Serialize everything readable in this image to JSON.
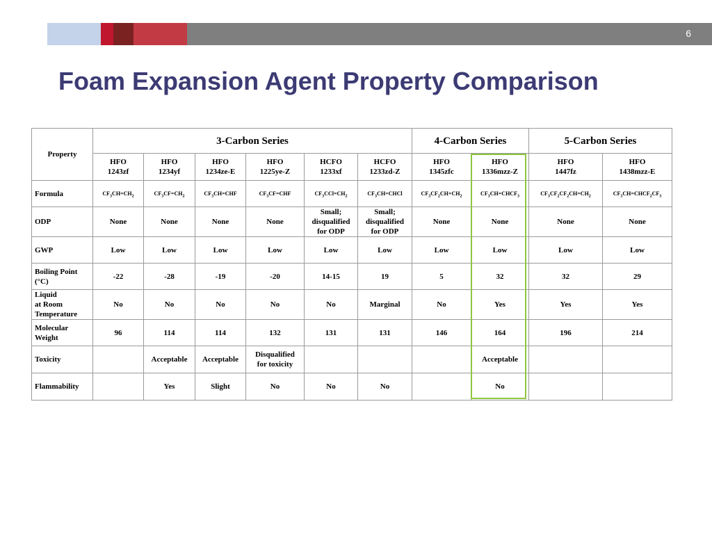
{
  "page_number": "6",
  "title": "Foam Expansion Agent Property Comparison",
  "table": {
    "property_header": "Property",
    "series": [
      {
        "label": "3-Carbon Series"
      },
      {
        "label": "4-Carbon Series"
      },
      {
        "label": "5-Carbon Series"
      }
    ],
    "compounds": [
      {
        "line1": "HFO",
        "line2": "1243zf"
      },
      {
        "line1": "HFO",
        "line2": "1234yf"
      },
      {
        "line1": "HFO",
        "line2": "1234ze-E"
      },
      {
        "line1": "HFO",
        "line2": "1225ye-Z"
      },
      {
        "line1": "HCFO",
        "line2": "1233xf"
      },
      {
        "line1": "HCFO",
        "line2": "1233zd-Z"
      },
      {
        "line1": "HFO",
        "line2": "1345zfc"
      },
      {
        "line1": "HFO",
        "line2": "1336mzz-Z"
      },
      {
        "line1": "HFO",
        "line2": "1447fz"
      },
      {
        "line1": "HFO",
        "line2": "1438mzz-E"
      }
    ],
    "formula_label": "Formula",
    "formulas": [
      "CF₃CH=CH₂",
      "CF₃CF=CH₂",
      "CF₃CH=CHF",
      "CF₃CF=CHF",
      "CF₃CCl=CH₂",
      "CF₃CH=CHCl",
      "CF₃CF₂CH=CH₂",
      "CF₃CH=CHCF₃",
      "CF₃CF₂CF₂CH=CH₂",
      "CF₃CH=CHCF₂CF₃"
    ],
    "odp_label": "ODP",
    "odp": [
      "None",
      "None",
      "None",
      "None",
      "Small;\ndisqualified\nfor ODP",
      "Small;\ndisqualified\nfor ODP",
      "None",
      "None",
      "None",
      "None"
    ],
    "gwp_label": "GWP",
    "gwp": [
      "Low",
      "Low",
      "Low",
      "Low",
      "Low",
      "Low",
      "Low",
      "Low",
      "Low",
      "Low"
    ],
    "bp_label": "Boiling Point\n(°C)",
    "bp": [
      "-22",
      "-28",
      "-19",
      "-20",
      "14-15",
      "19",
      "5",
      "32",
      "32",
      "29"
    ],
    "liquid_label": "Liquid\nat Room\nTemperature",
    "liquid": [
      "No",
      "No",
      "No",
      "No",
      "No",
      "Marginal",
      "No",
      "Yes",
      "Yes",
      "Yes"
    ],
    "mw_label": "Molecular\nWeight",
    "mw": [
      "96",
      "114",
      "114",
      "132",
      "131",
      "131",
      "146",
      "164",
      "196",
      "214"
    ],
    "tox_label": "Toxicity",
    "tox": [
      "",
      "Acceptable",
      "Acceptable",
      "Disqualified\nfor toxicity",
      "",
      "",
      "",
      "Acceptable",
      "",
      ""
    ],
    "flam_label": "Flammability",
    "flam": [
      "",
      "Yes",
      "Slight",
      "No",
      "No",
      "No",
      "",
      "No",
      "",
      ""
    ]
  },
  "colors": {
    "title": "#3c3b74",
    "highlight_border": "#8dc63f",
    "bar_gray": "#7f7f7f",
    "bar_light_blue": "#c4d2ea",
    "bar_red": "#c0172e",
    "bar_dark_red": "#7a2222"
  }
}
